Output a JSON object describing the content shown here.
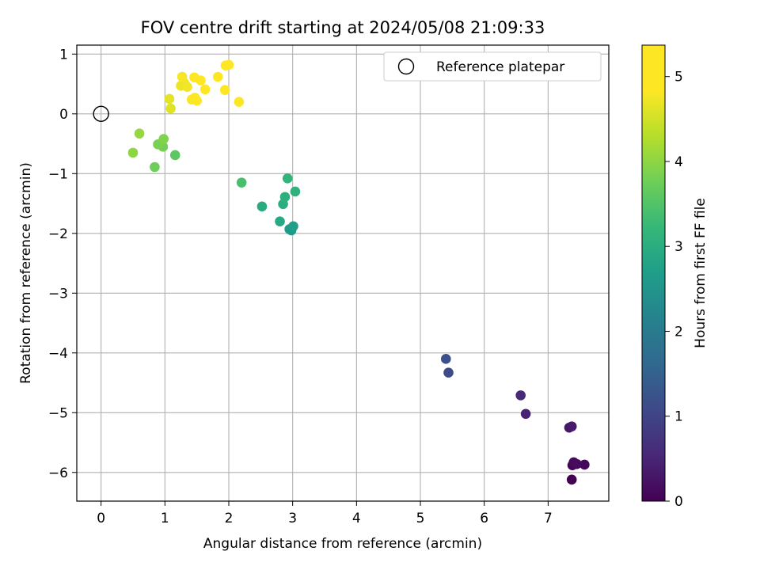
{
  "chart_data": {
    "type": "scatter",
    "title": "FOV centre drift starting at 2024/05/08 21:09:33",
    "xlabel": "Angular distance from reference (arcmin)",
    "ylabel": "Rotation from reference (arcmin)",
    "xlim": [
      -0.38,
      7.95
    ],
    "ylim": [
      -6.48,
      1.15
    ],
    "xticks": [
      "0",
      "1",
      "2",
      "3",
      "4",
      "5",
      "6",
      "7"
    ],
    "yticks": [
      "1",
      "0",
      "−1",
      "−2",
      "−3",
      "−4",
      "−5",
      "−6"
    ],
    "grid": true,
    "legend": {
      "position": "top-right",
      "label": "Reference platepar"
    },
    "reference_point": {
      "x": 0,
      "y": 0
    },
    "colorbar": {
      "label": "Hours from first FF file",
      "colormap": "viridis",
      "range": [
        0,
        5.37
      ],
      "ticks": [
        "0",
        "1",
        "2",
        "3",
        "4",
        "5"
      ]
    },
    "points": [
      {
        "x": 7.37,
        "y": -6.12,
        "hours": 0.0
      },
      {
        "x": 7.38,
        "y": -5.88,
        "hours": 0.05
      },
      {
        "x": 7.57,
        "y": -5.87,
        "hours": 0.08
      },
      {
        "x": 7.4,
        "y": -5.83,
        "hours": 0.12
      },
      {
        "x": 7.45,
        "y": -5.86,
        "hours": 0.15
      },
      {
        "x": 7.33,
        "y": -5.25,
        "hours": 0.3
      },
      {
        "x": 7.37,
        "y": -5.23,
        "hours": 0.35
      },
      {
        "x": 6.65,
        "y": -5.02,
        "hours": 0.45
      },
      {
        "x": 6.57,
        "y": -4.71,
        "hours": 0.55
      },
      {
        "x": 5.44,
        "y": -4.33,
        "hours": 1.1
      },
      {
        "x": 5.4,
        "y": -4.1,
        "hours": 1.2
      },
      {
        "x": 2.95,
        "y": -1.93,
        "hours": 2.6
      },
      {
        "x": 2.98,
        "y": -1.95,
        "hours": 2.65
      },
      {
        "x": 3.01,
        "y": -1.88,
        "hours": 2.7
      },
      {
        "x": 2.8,
        "y": -1.8,
        "hours": 2.9
      },
      {
        "x": 2.52,
        "y": -1.55,
        "hours": 2.95
      },
      {
        "x": 2.85,
        "y": -1.51,
        "hours": 3.0
      },
      {
        "x": 2.88,
        "y": -1.39,
        "hours": 3.05
      },
      {
        "x": 3.04,
        "y": -1.3,
        "hours": 3.1
      },
      {
        "x": 2.92,
        "y": -1.08,
        "hours": 3.15
      },
      {
        "x": 2.2,
        "y": -1.15,
        "hours": 3.4
      },
      {
        "x": 1.16,
        "y": -0.69,
        "hours": 3.6
      },
      {
        "x": 0.84,
        "y": -0.89,
        "hours": 3.75
      },
      {
        "x": 0.97,
        "y": -0.55,
        "hours": 3.8
      },
      {
        "x": 0.89,
        "y": -0.51,
        "hours": 3.85
      },
      {
        "x": 0.98,
        "y": -0.42,
        "hours": 3.9
      },
      {
        "x": 0.5,
        "y": -0.65,
        "hours": 4.0
      },
      {
        "x": 0.6,
        "y": -0.33,
        "hours": 4.05
      },
      {
        "x": 1.09,
        "y": 0.09,
        "hours": 4.6
      },
      {
        "x": 1.07,
        "y": 0.25,
        "hours": 4.65
      },
      {
        "x": 1.25,
        "y": 0.47,
        "hours": 4.7
      },
      {
        "x": 1.3,
        "y": 0.52,
        "hours": 4.72
      },
      {
        "x": 1.35,
        "y": 0.45,
        "hours": 4.75
      },
      {
        "x": 1.27,
        "y": 0.62,
        "hours": 4.78
      },
      {
        "x": 1.42,
        "y": 0.24,
        "hours": 4.8
      },
      {
        "x": 1.47,
        "y": 0.27,
        "hours": 4.82
      },
      {
        "x": 1.5,
        "y": 0.22,
        "hours": 4.85
      },
      {
        "x": 1.46,
        "y": 0.61,
        "hours": 4.88
      },
      {
        "x": 1.56,
        "y": 0.56,
        "hours": 4.9
      },
      {
        "x": 1.63,
        "y": 0.41,
        "hours": 4.95
      },
      {
        "x": 1.83,
        "y": 0.62,
        "hours": 5.05
      },
      {
        "x": 1.94,
        "y": 0.4,
        "hours": 5.1
      },
      {
        "x": 1.95,
        "y": 0.81,
        "hours": 5.2
      },
      {
        "x": 2.0,
        "y": 0.82,
        "hours": 5.25
      },
      {
        "x": 2.16,
        "y": 0.2,
        "hours": 5.37
      }
    ]
  }
}
